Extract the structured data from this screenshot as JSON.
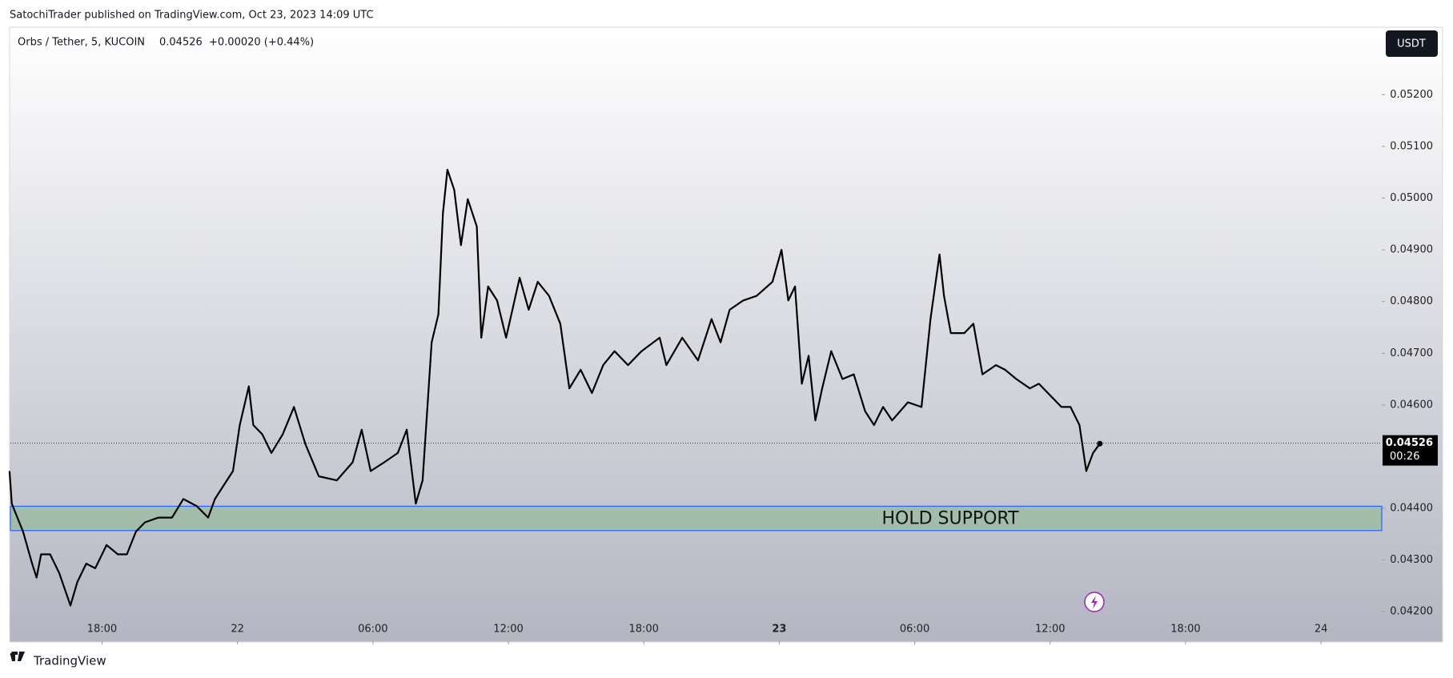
{
  "header": {
    "publisher": "SatochiTrader published on TradingView.com, Oct 23, 2023 14:09 UTC",
    "brand": "TradingView"
  },
  "chart_data": {
    "type": "line",
    "legend": {
      "symbol": "Orbs / Tether, 5, KUCOIN",
      "price": "0.04526",
      "change": "+0.00020 (+0.44%)"
    },
    "currency": "USDT",
    "x": [
      -10.1,
      -10.0,
      -9.5,
      -9.1,
      -8.9,
      -8.7,
      -8.3,
      -7.9,
      -7.4,
      -7.1,
      -6.7,
      -6.3,
      -5.8,
      -5.3,
      -4.9,
      -4.5,
      -4.1,
      -3.5,
      -2.9,
      -2.4,
      -1.8,
      -1.3,
      -1.0,
      -0.6,
      -0.2,
      0.1,
      0.5,
      0.7,
      1.1,
      1.5,
      2.0,
      2.5,
      3.0,
      3.6,
      4.4,
      5.1,
      5.5,
      5.9,
      6.5,
      7.1,
      7.5,
      7.9,
      8.2,
      8.6,
      8.9,
      9.1,
      9.3,
      9.6,
      9.9,
      10.2,
      10.6,
      10.8,
      11.1,
      11.5,
      11.9,
      12.5,
      12.9,
      13.3,
      13.8,
      14.3,
      14.7,
      15.2,
      15.7,
      16.2,
      16.7,
      17.3,
      17.9,
      18.7,
      19.0,
      19.7,
      20.4,
      21.0,
      21.4,
      21.8,
      22.4,
      23.0,
      23.7,
      24.1,
      24.4,
      24.7,
      25.0,
      25.3,
      25.6,
      25.9,
      26.3,
      26.8,
      27.3,
      27.8,
      28.2,
      28.6,
      29.0,
      29.7,
      30.3,
      30.7,
      31.1,
      31.3,
      31.6,
      32.2,
      32.6,
      33.0,
      33.6,
      34.0,
      34.5,
      35.1,
      35.5,
      36.1,
      36.5,
      36.9,
      37.3,
      37.6,
      37.9,
      38.2
    ],
    "values": [
      0.04472,
      0.04409,
      0.04355,
      0.04293,
      0.04266,
      0.04311,
      0.04311,
      0.04275,
      0.04212,
      0.04257,
      0.04293,
      0.04284,
      0.04329,
      0.04311,
      0.04311,
      0.04355,
      0.04373,
      0.04382,
      0.04382,
      0.04418,
      0.04404,
      0.04382,
      0.04418,
      0.04445,
      0.04472,
      0.04561,
      0.04636,
      0.04561,
      0.04543,
      0.04507,
      0.04543,
      0.04596,
      0.04525,
      0.04462,
      0.04454,
      0.04489,
      0.04552,
      0.04472,
      0.04489,
      0.04507,
      0.04552,
      0.04409,
      0.04454,
      0.04721,
      0.04775,
      0.04971,
      0.05055,
      0.05016,
      0.04909,
      0.04998,
      0.04945,
      0.0473,
      0.04829,
      0.04802,
      0.0473,
      0.04846,
      0.04784,
      0.04838,
      0.04811,
      0.04757,
      0.04632,
      0.04668,
      0.04623,
      0.04677,
      0.04704,
      0.04677,
      0.04704,
      0.0473,
      0.04677,
      0.0473,
      0.04686,
      0.04766,
      0.04721,
      0.04784,
      0.04802,
      0.04811,
      0.04838,
      0.049,
      0.04802,
      0.04829,
      0.04641,
      0.04695,
      0.0457,
      0.04632,
      0.04704,
      0.0465,
      0.04659,
      0.04588,
      0.04561,
      0.04596,
      0.0457,
      0.04605,
      0.04596,
      0.04766,
      0.04891,
      0.04811,
      0.04739,
      0.04739,
      0.04757,
      0.04659,
      0.04677,
      0.04668,
      0.0465,
      0.04632,
      0.04641,
      0.04614,
      0.04596,
      0.04596,
      0.04561,
      0.04472,
      0.04507,
      0.04525
    ],
    "color": "#000000",
    "xlim": [
      -10.06,
      50.69
    ],
    "xticks": [
      {
        "value": -6,
        "label": "18:00"
      },
      {
        "value": 0,
        "label": "22"
      },
      {
        "value": 6,
        "label": "06:00"
      },
      {
        "value": 12,
        "label": "12:00"
      },
      {
        "value": 18,
        "label": "18:00"
      },
      {
        "value": 24,
        "label": "23"
      },
      {
        "value": 30,
        "label": "06:00"
      },
      {
        "value": 36,
        "label": "12:00"
      },
      {
        "value": 42,
        "label": "18:00"
      },
      {
        "value": 48,
        "label": "24"
      }
    ],
    "ylim": [
      0.04143,
      0.05329
    ],
    "yticks": [
      {
        "value": 0.042,
        "label": "0.04200"
      },
      {
        "value": 0.043,
        "label": "0.04300"
      },
      {
        "value": 0.044,
        "label": "0.04400"
      },
      {
        "value": 0.046,
        "label": "0.04600"
      },
      {
        "value": 0.047,
        "label": "0.04700"
      },
      {
        "value": 0.048,
        "label": "0.04800"
      },
      {
        "value": 0.049,
        "label": "0.04900"
      },
      {
        "value": 0.05,
        "label": "0.05000"
      },
      {
        "value": 0.051,
        "label": "0.05100"
      },
      {
        "value": 0.052,
        "label": "0.05200"
      }
    ],
    "last": {
      "value": 0.04526,
      "label": "0.04526",
      "countdown": "00:26"
    },
    "zone": {
      "label": "HOLD SUPPORT",
      "high": 0.04404,
      "low": 0.04357
    }
  }
}
